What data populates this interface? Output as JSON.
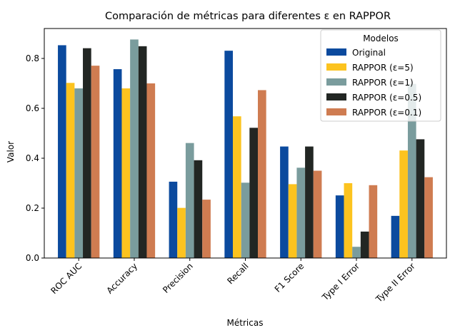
{
  "chart_data": {
    "type": "bar",
    "title": "Comparación de métricas para diferentes ε en RAPPOR",
    "xlabel": "Métricas",
    "ylabel": "Valor",
    "ylim": [
      0,
      0.92
    ],
    "yticks": [
      0.0,
      0.2,
      0.4,
      0.6,
      0.8
    ],
    "grid": false,
    "categories": [
      "ROC AUC",
      "Accuracy",
      "Precision",
      "Recall",
      "F1 Score",
      "Type I Error",
      "Type II Error"
    ],
    "series": [
      {
        "name": "Original",
        "color": "#0b4a9e",
        "values": [
          0.853,
          0.757,
          0.306,
          0.831,
          0.447,
          0.251,
          0.169
        ]
      },
      {
        "name": "RAPPOR (ε=5)",
        "color": "#fcc31f",
        "values": [
          0.702,
          0.68,
          0.201,
          0.568,
          0.296,
          0.3,
          0.431
        ]
      },
      {
        "name": "RAPPOR (ε=1)",
        "color": "#7a9c9d",
        "values": [
          0.68,
          0.876,
          0.461,
          0.302,
          0.362,
          0.045,
          0.698
        ]
      },
      {
        "name": "RAPPOR (ε=0.5)",
        "color": "#222623",
        "values": [
          0.841,
          0.849,
          0.392,
          0.522,
          0.447,
          0.106,
          0.476
        ]
      },
      {
        "name": "RAPPOR (ε=0.1)",
        "color": "#cf7c51",
        "values": [
          0.771,
          0.7,
          0.234,
          0.673,
          0.35,
          0.292,
          0.324
        ]
      }
    ],
    "legend": {
      "title": "Modelos",
      "position": "top-right"
    }
  }
}
